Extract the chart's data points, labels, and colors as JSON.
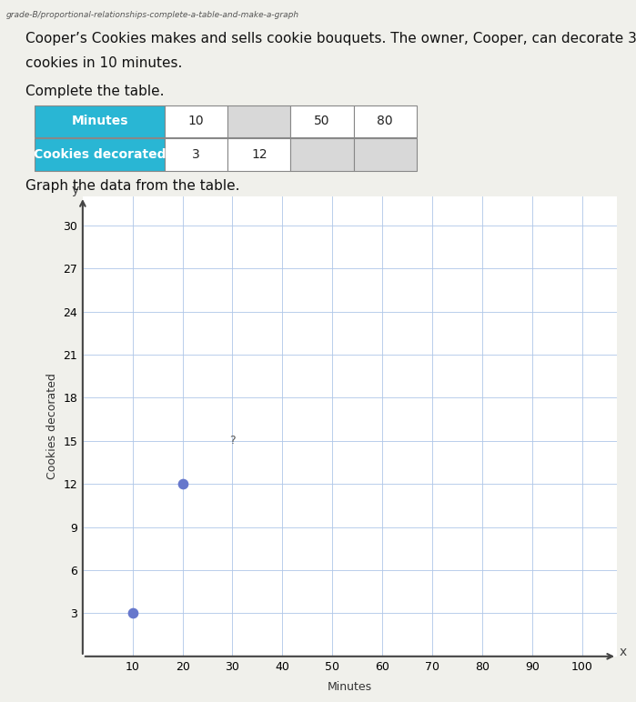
{
  "page_title": "grade-B/proportional-relationships-complete-a-table-and-make-a-graph",
  "problem_text_line1": "Cooper’s Cookies makes and sells cookie bouquets. The owner, Cooper, can decorate 3",
  "problem_text_line2": "cookies in 10 minutes.",
  "complete_table_text": "Complete the table.",
  "graph_text": "Graph the data from the table.",
  "header_labels": [
    "Minutes",
    "10",
    "",
    "50",
    "80"
  ],
  "row2_labels": [
    "Cookies decorated",
    "3",
    "12",
    "",
    ""
  ],
  "header_bg": "#29b6d4",
  "header_text_color": "#ffffff",
  "blank_cell_bg": "#d8d8d8",
  "white_cell_bg": "#ffffff",
  "x_data": [
    10,
    20
  ],
  "y_data": [
    3,
    12
  ],
  "dot_color": "#6677cc",
  "question_mark_x": 30,
  "question_mark_y": 15,
  "xlabel": "Minutes",
  "ylabel": "Cookies decorated",
  "x_ticks": [
    10,
    20,
    30,
    40,
    50,
    60,
    70,
    80,
    90,
    100
  ],
  "y_ticks": [
    3,
    6,
    9,
    12,
    15,
    18,
    21,
    24,
    27,
    30
  ],
  "xlim": [
    0,
    107
  ],
  "ylim": [
    0,
    32
  ],
  "grid_color": "#aec6e8",
  "bg_color": "#f0f0eb",
  "plot_bg": "#ffffff"
}
